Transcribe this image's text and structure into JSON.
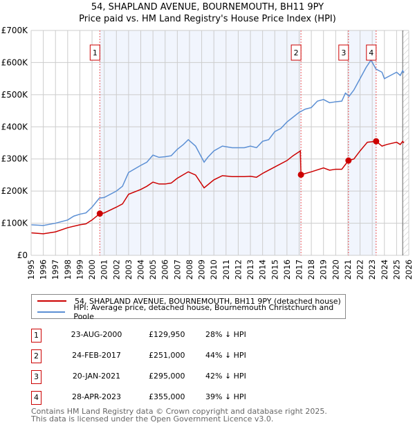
{
  "chart_data": {
    "type": "line",
    "title": "54, SHAPLAND AVENUE, BOURNEMOUTH, BH11 9PY",
    "subtitle": "Price paid vs. HM Land Registry's House Price Index (HPI)",
    "xlim": [
      1995,
      2026
    ],
    "ylim": [
      0,
      700000
    ],
    "yticks": [
      {
        "v": 0,
        "label": "£0"
      },
      {
        "v": 100000,
        "label": "£100K"
      },
      {
        "v": 200000,
        "label": "£200K"
      },
      {
        "v": 300000,
        "label": "£300K"
      },
      {
        "v": 400000,
        "label": "£400K"
      },
      {
        "v": 500000,
        "label": "£500K"
      },
      {
        "v": 600000,
        "label": "£600K"
      },
      {
        "v": 700000,
        "label": "£700K"
      }
    ],
    "xticks": [
      "1995",
      "1996",
      "1997",
      "1998",
      "1999",
      "2000",
      "2001",
      "2002",
      "2003",
      "2004",
      "2005",
      "2006",
      "2007",
      "2008",
      "2009",
      "2010",
      "2011",
      "2012",
      "2013",
      "2014",
      "2015",
      "2016",
      "2017",
      "2018",
      "2019",
      "2020",
      "2021",
      "2022",
      "2023",
      "2024",
      "2025",
      "2026"
    ],
    "grid": true,
    "shaded_ranges": [
      [
        2000.64,
        2017.15
      ],
      [
        2021.05,
        2023.32
      ]
    ],
    "hatched_from": 2025.5,
    "series": [
      {
        "name": "54, SHAPLAND AVENUE, BOURNEMOUTH, BH11 9PY (detached house)",
        "color": "#cc0000",
        "x": [
          1995,
          1996,
          1997,
          1998,
          1999,
          1999.5,
          2000,
          2000.64,
          2001,
          2002,
          2002.5,
          2003,
          2004,
          2004.5,
          2005,
          2005.5,
          2006,
          2006.5,
          2007,
          2007.9,
          2008.5,
          2009.2,
          2010,
          2010.7,
          2011.5,
          2012.5,
          2013,
          2013.5,
          2014,
          2015,
          2016,
          2016.5,
          2017.1,
          2017.15,
          2018,
          2019,
          2019.5,
          2020,
          2020.5,
          2021.05,
          2021.5,
          2022,
          2022.6,
          2023.32,
          2023.8,
          2024.2,
          2025,
          2025.3,
          2025.5,
          2025.6
        ],
        "y": [
          70000,
          67000,
          73000,
          86000,
          95000,
          98000,
          110000,
          129950,
          132000,
          150000,
          160000,
          190000,
          205000,
          215000,
          228000,
          222000,
          222000,
          225000,
          240000,
          260000,
          250000,
          210000,
          235000,
          248000,
          245000,
          245000,
          246000,
          243000,
          255000,
          275000,
          295000,
          310000,
          325000,
          251000,
          260000,
          272000,
          265000,
          268000,
          268000,
          295000,
          300000,
          325000,
          352000,
          355000,
          340000,
          345000,
          352000,
          345000,
          355000,
          350000
        ]
      },
      {
        "name": "HPI: Average price, detached house, Bournemouth Christchurch and Poole",
        "color": "#5b8fd4",
        "x": [
          1995,
          1996,
          1997,
          1998,
          1998.5,
          1999,
          1999.5,
          2000,
          2000.6,
          2001,
          2002,
          2002.5,
          2003,
          2004,
          2004.5,
          2005,
          2005.5,
          2006,
          2006.5,
          2007,
          2007.5,
          2007.9,
          2008.5,
          2009.2,
          2009.5,
          2010,
          2010.7,
          2011.5,
          2012.5,
          2013,
          2013.5,
          2014,
          2014.5,
          2015,
          2015.5,
          2016,
          2016.5,
          2017,
          2017.5,
          2018,
          2018.5,
          2019,
          2019.5,
          2020,
          2020.5,
          2020.8,
          2021.1,
          2021.5,
          2022,
          2022.5,
          2022.9,
          2023.3,
          2023.8,
          2024,
          2024.5,
          2025,
          2025.3,
          2025.5,
          2025.6
        ],
        "y": [
          95000,
          93000,
          100000,
          110000,
          122000,
          128000,
          132000,
          150000,
          178000,
          180000,
          200000,
          215000,
          258000,
          280000,
          290000,
          312000,
          305000,
          307000,
          310000,
          330000,
          345000,
          360000,
          340000,
          290000,
          305000,
          325000,
          340000,
          335000,
          335000,
          340000,
          335000,
          355000,
          360000,
          385000,
          395000,
          415000,
          430000,
          445000,
          455000,
          460000,
          480000,
          485000,
          475000,
          478000,
          480000,
          505000,
          495000,
          515000,
          550000,
          585000,
          608000,
          580000,
          570000,
          550000,
          560000,
          570000,
          560000,
          575000,
          568000
        ]
      }
    ],
    "sales": [
      {
        "n": "1",
        "x": 2000.64,
        "y": 129950,
        "date": "23-AUG-2000",
        "price": "£129,950",
        "hpi": "28% ↓ HPI"
      },
      {
        "n": "2",
        "x": 2017.15,
        "y": 251000,
        "date": "24-FEB-2017",
        "price": "£251,000",
        "hpi": "44% ↓ HPI"
      },
      {
        "n": "3",
        "x": 2021.05,
        "y": 295000,
        "date": "20-JAN-2021",
        "price": "£295,000",
        "hpi": "42% ↓ HPI"
      },
      {
        "n": "4",
        "x": 2023.32,
        "y": 355000,
        "date": "28-APR-2023",
        "price": "£355,000",
        "hpi": "39% ↓ HPI"
      }
    ]
  },
  "footer": {
    "line1": "Contains HM Land Registry data © Crown copyright and database right 2025.",
    "line2": "This data is licensed under the Open Government Licence v3.0."
  }
}
